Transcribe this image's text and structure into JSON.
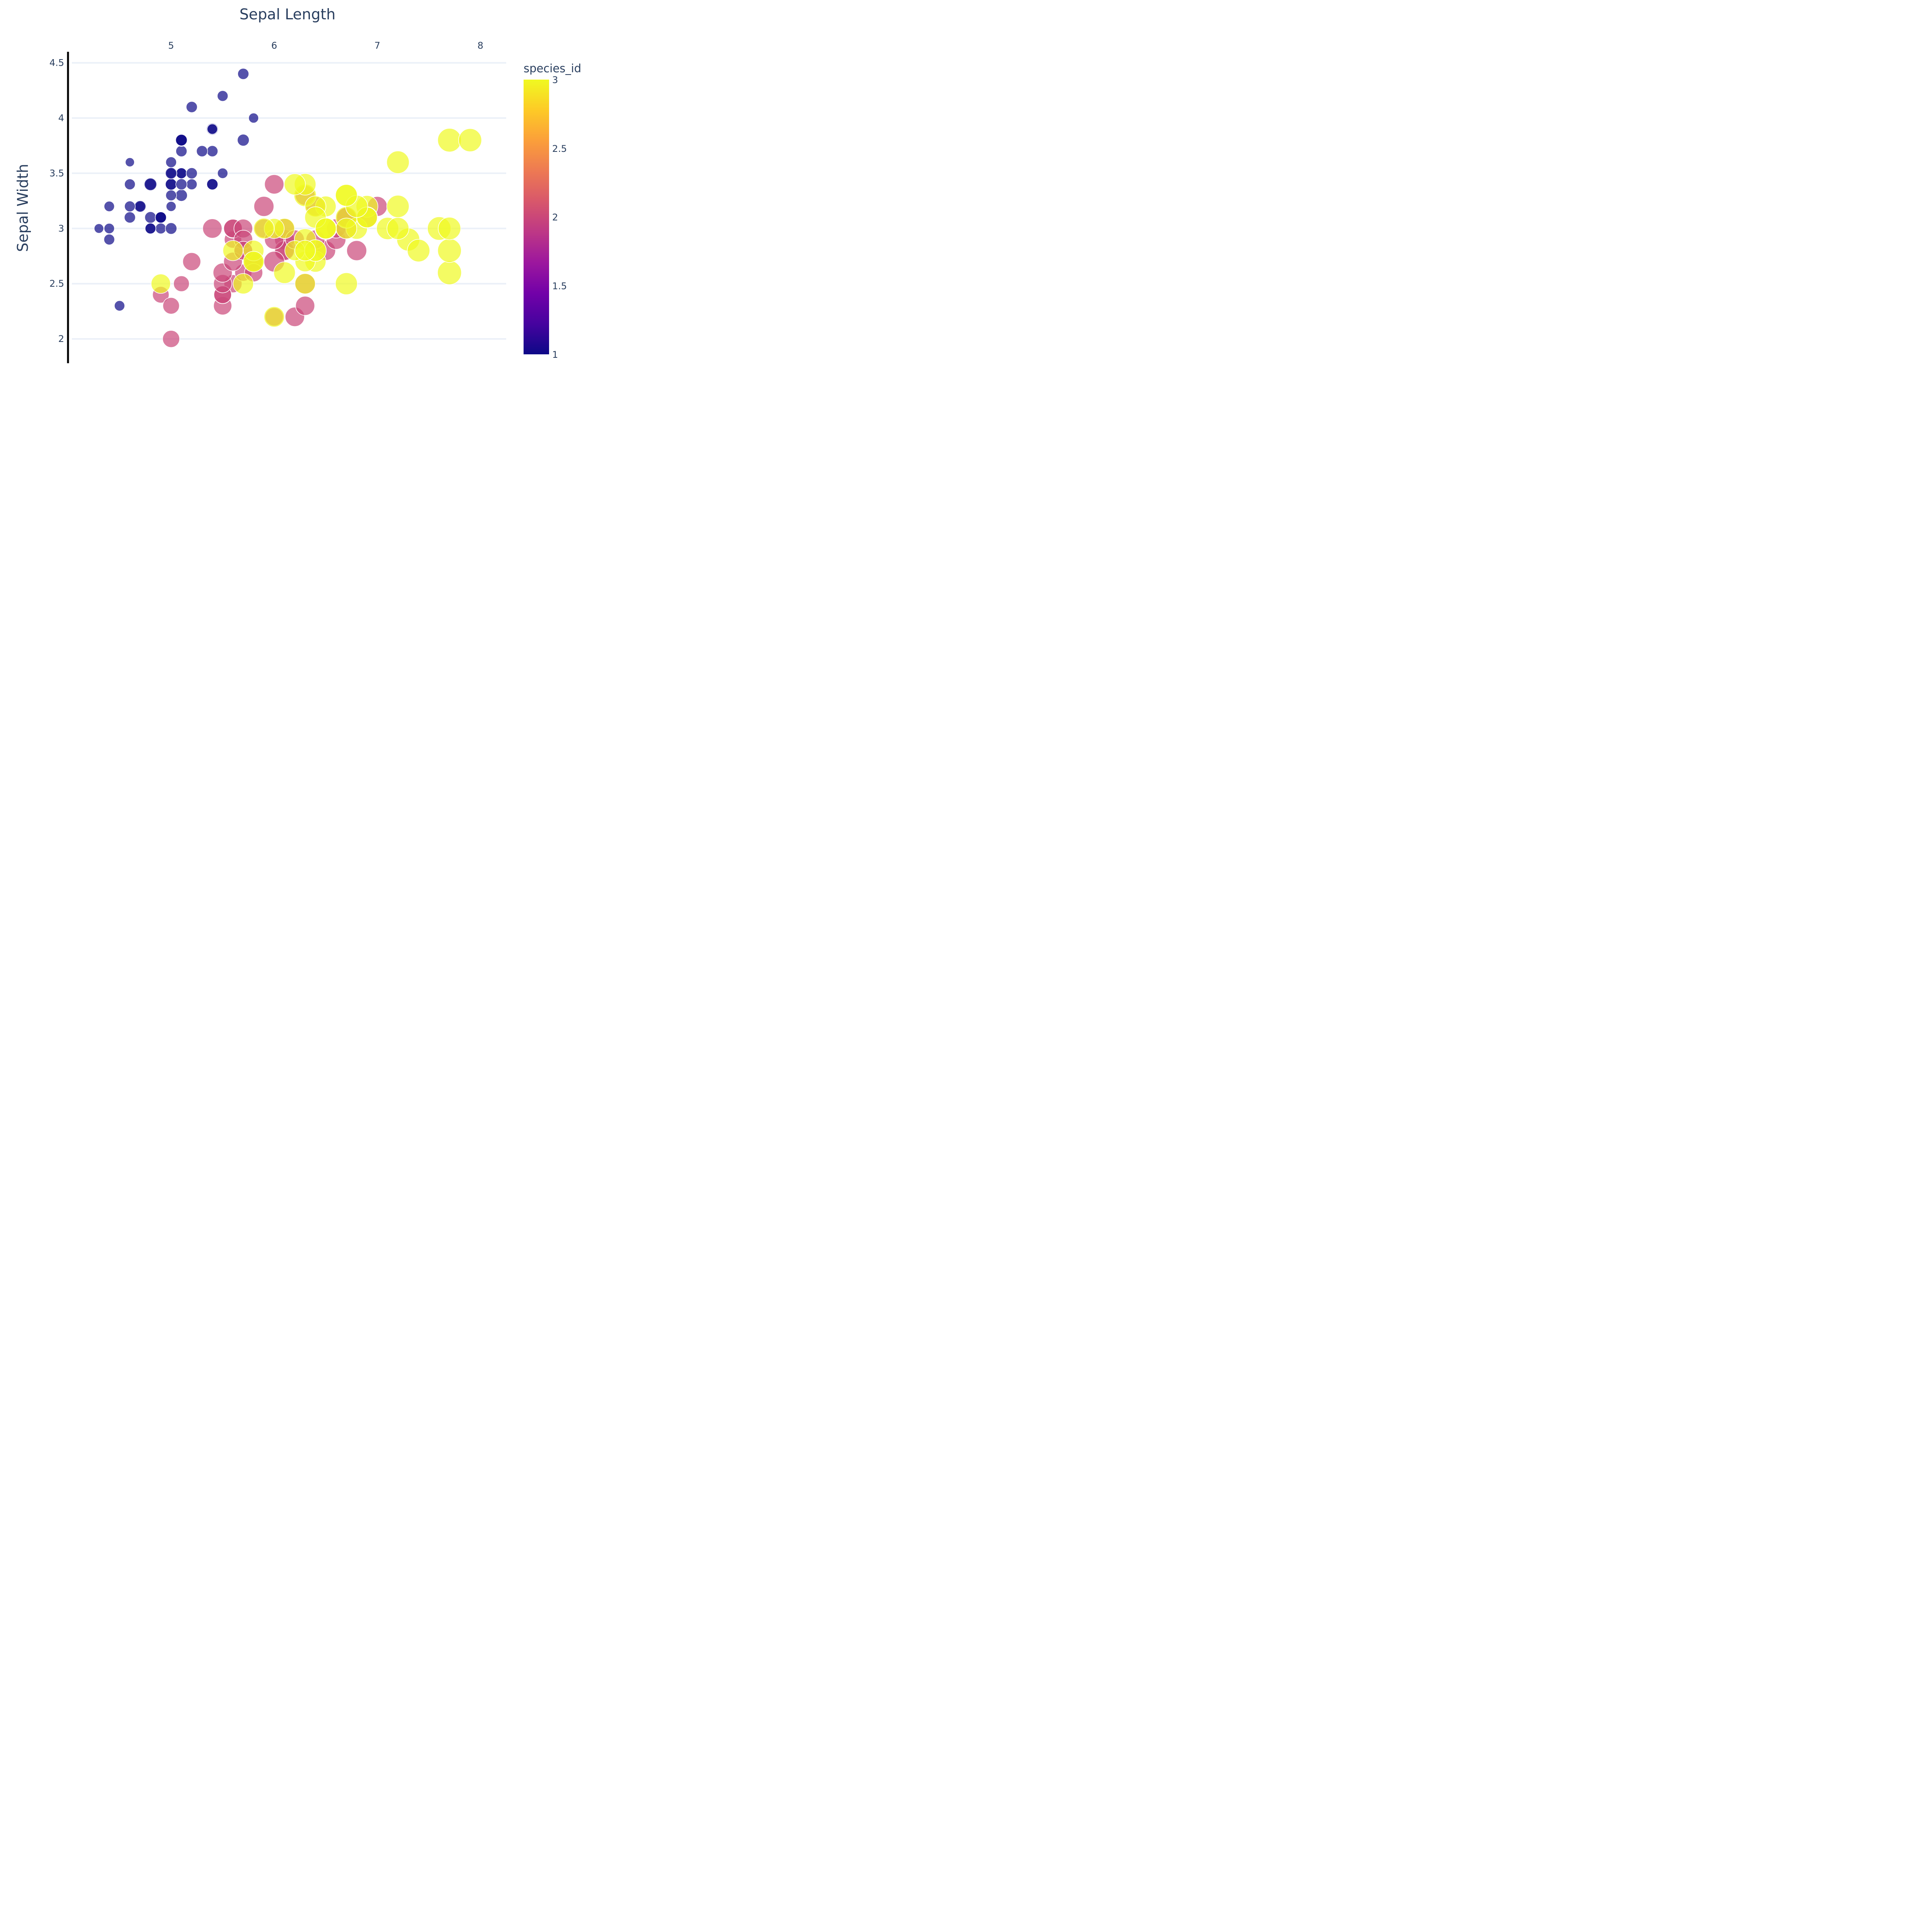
{
  "chart_data": {
    "type": "scatter",
    "xlabel": "Sepal Length",
    "ylabel": "Sepal Width",
    "x_ticks": [
      "5",
      "6",
      "7",
      "8"
    ],
    "y_ticks": [
      "2",
      "2.5",
      "3",
      "3.5",
      "4",
      "4.5"
    ],
    "xlim": [
      4.0,
      8.25
    ],
    "ylim": [
      1.78,
      4.6
    ],
    "x_axis_position": "top",
    "y_axis_line": true,
    "grid": "horizontal",
    "size_by": "petal_length",
    "color_by": "species_id",
    "colorbar": {
      "title": "species_id",
      "min": 1,
      "max": 3,
      "ticks": [
        "1",
        "1.5",
        "2",
        "2.5",
        "3"
      ],
      "colorscale": [
        "#0d0887",
        "#46039f",
        "#7201a8",
        "#9c179e",
        "#bd3786",
        "#d8576b",
        "#ed7953",
        "#fb9f3a",
        "#fdca26",
        "#f0f921"
      ]
    },
    "points": [
      {
        "x": 5.1,
        "y": 3.5,
        "s": 1.4,
        "c": 1
      },
      {
        "x": 4.9,
        "y": 3.0,
        "s": 1.4,
        "c": 1
      },
      {
        "x": 4.7,
        "y": 3.2,
        "s": 1.3,
        "c": 1
      },
      {
        "x": 4.6,
        "y": 3.1,
        "s": 1.5,
        "c": 1
      },
      {
        "x": 5.0,
        "y": 3.6,
        "s": 1.4,
        "c": 1
      },
      {
        "x": 5.4,
        "y": 3.9,
        "s": 1.7,
        "c": 1
      },
      {
        "x": 4.6,
        "y": 3.4,
        "s": 1.4,
        "c": 1
      },
      {
        "x": 5.0,
        "y": 3.4,
        "s": 1.5,
        "c": 1
      },
      {
        "x": 4.4,
        "y": 2.9,
        "s": 1.4,
        "c": 1
      },
      {
        "x": 4.9,
        "y": 3.1,
        "s": 1.5,
        "c": 1
      },
      {
        "x": 5.4,
        "y": 3.7,
        "s": 1.5,
        "c": 1
      },
      {
        "x": 4.8,
        "y": 3.4,
        "s": 1.6,
        "c": 1
      },
      {
        "x": 4.8,
        "y": 3.0,
        "s": 1.4,
        "c": 1
      },
      {
        "x": 4.3,
        "y": 3.0,
        "s": 1.1,
        "c": 1
      },
      {
        "x": 5.8,
        "y": 4.0,
        "s": 1.2,
        "c": 1
      },
      {
        "x": 5.7,
        "y": 4.4,
        "s": 1.5,
        "c": 1
      },
      {
        "x": 5.4,
        "y": 3.9,
        "s": 1.3,
        "c": 1
      },
      {
        "x": 5.1,
        "y": 3.5,
        "s": 1.4,
        "c": 1
      },
      {
        "x": 5.7,
        "y": 3.8,
        "s": 1.7,
        "c": 1
      },
      {
        "x": 5.1,
        "y": 3.8,
        "s": 1.5,
        "c": 1
      },
      {
        "x": 5.4,
        "y": 3.4,
        "s": 1.7,
        "c": 1
      },
      {
        "x": 5.1,
        "y": 3.7,
        "s": 1.5,
        "c": 1
      },
      {
        "x": 4.6,
        "y": 3.6,
        "s": 1.0,
        "c": 1
      },
      {
        "x": 5.1,
        "y": 3.3,
        "s": 1.7,
        "c": 1
      },
      {
        "x": 4.8,
        "y": 3.4,
        "s": 1.9,
        "c": 1
      },
      {
        "x": 5.0,
        "y": 3.0,
        "s": 1.6,
        "c": 1
      },
      {
        "x": 5.0,
        "y": 3.4,
        "s": 1.6,
        "c": 1
      },
      {
        "x": 5.2,
        "y": 3.5,
        "s": 1.5,
        "c": 1
      },
      {
        "x": 5.2,
        "y": 3.4,
        "s": 1.4,
        "c": 1
      },
      {
        "x": 4.7,
        "y": 3.2,
        "s": 1.6,
        "c": 1
      },
      {
        "x": 4.8,
        "y": 3.1,
        "s": 1.6,
        "c": 1
      },
      {
        "x": 5.4,
        "y": 3.4,
        "s": 1.5,
        "c": 1
      },
      {
        "x": 5.2,
        "y": 4.1,
        "s": 1.5,
        "c": 1
      },
      {
        "x": 5.5,
        "y": 4.2,
        "s": 1.4,
        "c": 1
      },
      {
        "x": 4.9,
        "y": 3.1,
        "s": 1.5,
        "c": 1
      },
      {
        "x": 5.0,
        "y": 3.2,
        "s": 1.2,
        "c": 1
      },
      {
        "x": 5.5,
        "y": 3.5,
        "s": 1.3,
        "c": 1
      },
      {
        "x": 4.9,
        "y": 3.1,
        "s": 1.5,
        "c": 1
      },
      {
        "x": 4.4,
        "y": 3.0,
        "s": 1.3,
        "c": 1
      },
      {
        "x": 5.1,
        "y": 3.4,
        "s": 1.5,
        "c": 1
      },
      {
        "x": 5.0,
        "y": 3.5,
        "s": 1.3,
        "c": 1
      },
      {
        "x": 4.5,
        "y": 2.3,
        "s": 1.3,
        "c": 1
      },
      {
        "x": 4.4,
        "y": 3.2,
        "s": 1.3,
        "c": 1
      },
      {
        "x": 5.0,
        "y": 3.5,
        "s": 1.6,
        "c": 1
      },
      {
        "x": 5.1,
        "y": 3.8,
        "s": 1.9,
        "c": 1
      },
      {
        "x": 4.8,
        "y": 3.0,
        "s": 1.4,
        "c": 1
      },
      {
        "x": 5.1,
        "y": 3.8,
        "s": 1.6,
        "c": 1
      },
      {
        "x": 4.6,
        "y": 3.2,
        "s": 1.4,
        "c": 1
      },
      {
        "x": 5.3,
        "y": 3.7,
        "s": 1.5,
        "c": 1
      },
      {
        "x": 5.0,
        "y": 3.3,
        "s": 1.4,
        "c": 1
      },
      {
        "x": 7.0,
        "y": 3.2,
        "s": 4.7,
        "c": 2
      },
      {
        "x": 6.4,
        "y": 3.2,
        "s": 4.5,
        "c": 2
      },
      {
        "x": 6.9,
        "y": 3.1,
        "s": 4.9,
        "c": 2
      },
      {
        "x": 5.5,
        "y": 2.3,
        "s": 4.0,
        "c": 2
      },
      {
        "x": 6.5,
        "y": 2.8,
        "s": 4.6,
        "c": 2
      },
      {
        "x": 5.7,
        "y": 2.8,
        "s": 4.5,
        "c": 2
      },
      {
        "x": 6.3,
        "y": 3.3,
        "s": 4.7,
        "c": 2
      },
      {
        "x": 4.9,
        "y": 2.4,
        "s": 3.3,
        "c": 2
      },
      {
        "x": 6.6,
        "y": 2.9,
        "s": 4.6,
        "c": 2
      },
      {
        "x": 5.2,
        "y": 2.7,
        "s": 3.9,
        "c": 2
      },
      {
        "x": 5.0,
        "y": 2.0,
        "s": 3.5,
        "c": 2
      },
      {
        "x": 5.9,
        "y": 3.0,
        "s": 4.2,
        "c": 2
      },
      {
        "x": 6.0,
        "y": 2.2,
        "s": 4.0,
        "c": 2
      },
      {
        "x": 6.1,
        "y": 2.9,
        "s": 4.7,
        "c": 2
      },
      {
        "x": 5.6,
        "y": 2.9,
        "s": 3.6,
        "c": 2
      },
      {
        "x": 6.7,
        "y": 3.1,
        "s": 4.4,
        "c": 2
      },
      {
        "x": 5.6,
        "y": 3.0,
        "s": 4.5,
        "c": 2
      },
      {
        "x": 5.8,
        "y": 2.7,
        "s": 4.1,
        "c": 2
      },
      {
        "x": 6.2,
        "y": 2.2,
        "s": 4.5,
        "c": 2
      },
      {
        "x": 5.6,
        "y": 2.5,
        "s": 3.9,
        "c": 2
      },
      {
        "x": 5.9,
        "y": 3.2,
        "s": 4.8,
        "c": 2
      },
      {
        "x": 6.1,
        "y": 2.8,
        "s": 4.0,
        "c": 2
      },
      {
        "x": 6.3,
        "y": 2.5,
        "s": 4.9,
        "c": 2
      },
      {
        "x": 6.1,
        "y": 2.8,
        "s": 4.7,
        "c": 2
      },
      {
        "x": 6.4,
        "y": 2.9,
        "s": 4.3,
        "c": 2
      },
      {
        "x": 6.6,
        "y": 3.0,
        "s": 4.4,
        "c": 2
      },
      {
        "x": 6.8,
        "y": 2.8,
        "s": 4.8,
        "c": 2
      },
      {
        "x": 6.7,
        "y": 3.0,
        "s": 5.0,
        "c": 2
      },
      {
        "x": 6.0,
        "y": 2.9,
        "s": 4.5,
        "c": 2
      },
      {
        "x": 5.7,
        "y": 2.6,
        "s": 3.5,
        "c": 2
      },
      {
        "x": 5.5,
        "y": 2.4,
        "s": 3.8,
        "c": 2
      },
      {
        "x": 5.5,
        "y": 2.4,
        "s": 3.7,
        "c": 2
      },
      {
        "x": 5.8,
        "y": 2.7,
        "s": 3.9,
        "c": 2
      },
      {
        "x": 6.0,
        "y": 2.7,
        "s": 5.1,
        "c": 2
      },
      {
        "x": 5.4,
        "y": 3.0,
        "s": 4.5,
        "c": 2
      },
      {
        "x": 6.0,
        "y": 3.4,
        "s": 4.5,
        "c": 2
      },
      {
        "x": 6.7,
        "y": 3.1,
        "s": 4.7,
        "c": 2
      },
      {
        "x": 6.3,
        "y": 2.3,
        "s": 4.4,
        "c": 2
      },
      {
        "x": 5.6,
        "y": 3.0,
        "s": 4.1,
        "c": 2
      },
      {
        "x": 5.5,
        "y": 2.5,
        "s": 4.0,
        "c": 2
      },
      {
        "x": 5.5,
        "y": 2.6,
        "s": 4.4,
        "c": 2
      },
      {
        "x": 6.1,
        "y": 3.0,
        "s": 4.6,
        "c": 2
      },
      {
        "x": 5.8,
        "y": 2.6,
        "s": 4.0,
        "c": 2
      },
      {
        "x": 5.0,
        "y": 2.3,
        "s": 3.3,
        "c": 2
      },
      {
        "x": 5.6,
        "y": 2.7,
        "s": 4.2,
        "c": 2
      },
      {
        "x": 5.7,
        "y": 3.0,
        "s": 4.2,
        "c": 2
      },
      {
        "x": 5.7,
        "y": 2.9,
        "s": 4.2,
        "c": 2
      },
      {
        "x": 6.2,
        "y": 2.9,
        "s": 4.3,
        "c": 2
      },
      {
        "x": 5.1,
        "y": 2.5,
        "s": 3.0,
        "c": 2
      },
      {
        "x": 5.7,
        "y": 2.8,
        "s": 4.1,
        "c": 2
      },
      {
        "x": 6.3,
        "y": 3.3,
        "s": 6.0,
        "c": 3
      },
      {
        "x": 5.8,
        "y": 2.7,
        "s": 5.1,
        "c": 3
      },
      {
        "x": 7.1,
        "y": 3.0,
        "s": 5.9,
        "c": 3
      },
      {
        "x": 6.3,
        "y": 2.9,
        "s": 5.6,
        "c": 3
      },
      {
        "x": 6.5,
        "y": 3.0,
        "s": 5.8,
        "c": 3
      },
      {
        "x": 7.6,
        "y": 3.0,
        "s": 6.6,
        "c": 3
      },
      {
        "x": 4.9,
        "y": 2.5,
        "s": 4.5,
        "c": 3
      },
      {
        "x": 7.3,
        "y": 2.9,
        "s": 6.3,
        "c": 3
      },
      {
        "x": 6.7,
        "y": 2.5,
        "s": 5.8,
        "c": 3
      },
      {
        "x": 7.2,
        "y": 3.6,
        "s": 6.1,
        "c": 3
      },
      {
        "x": 6.5,
        "y": 3.2,
        "s": 5.1,
        "c": 3
      },
      {
        "x": 6.4,
        "y": 2.7,
        "s": 5.3,
        "c": 3
      },
      {
        "x": 6.8,
        "y": 3.0,
        "s": 5.5,
        "c": 3
      },
      {
        "x": 5.7,
        "y": 2.5,
        "s": 5.0,
        "c": 3
      },
      {
        "x": 5.8,
        "y": 2.8,
        "s": 5.1,
        "c": 3
      },
      {
        "x": 6.4,
        "y": 3.2,
        "s": 5.3,
        "c": 3
      },
      {
        "x": 6.5,
        "y": 3.0,
        "s": 5.5,
        "c": 3
      },
      {
        "x": 7.7,
        "y": 3.8,
        "s": 6.7,
        "c": 3
      },
      {
        "x": 7.7,
        "y": 2.6,
        "s": 6.9,
        "c": 3
      },
      {
        "x": 6.0,
        "y": 2.2,
        "s": 5.0,
        "c": 3
      },
      {
        "x": 6.9,
        "y": 3.2,
        "s": 5.7,
        "c": 3
      },
      {
        "x": 5.6,
        "y": 2.8,
        "s": 4.9,
        "c": 3
      },
      {
        "x": 7.7,
        "y": 2.8,
        "s": 6.7,
        "c": 3
      },
      {
        "x": 6.3,
        "y": 2.7,
        "s": 4.9,
        "c": 3
      },
      {
        "x": 6.7,
        "y": 3.3,
        "s": 5.7,
        "c": 3
      },
      {
        "x": 7.2,
        "y": 3.2,
        "s": 6.0,
        "c": 3
      },
      {
        "x": 6.2,
        "y": 2.8,
        "s": 4.8,
        "c": 3
      },
      {
        "x": 6.1,
        "y": 3.0,
        "s": 4.9,
        "c": 3
      },
      {
        "x": 6.4,
        "y": 2.8,
        "s": 5.6,
        "c": 3
      },
      {
        "x": 7.2,
        "y": 3.0,
        "s": 5.8,
        "c": 3
      },
      {
        "x": 7.4,
        "y": 2.8,
        "s": 6.1,
        "c": 3
      },
      {
        "x": 7.9,
        "y": 3.8,
        "s": 6.4,
        "c": 3
      },
      {
        "x": 6.4,
        "y": 2.8,
        "s": 5.6,
        "c": 3
      },
      {
        "x": 6.3,
        "y": 2.8,
        "s": 5.1,
        "c": 3
      },
      {
        "x": 6.1,
        "y": 2.6,
        "s": 5.6,
        "c": 3
      },
      {
        "x": 7.7,
        "y": 3.0,
        "s": 6.1,
        "c": 3
      },
      {
        "x": 6.3,
        "y": 3.4,
        "s": 5.6,
        "c": 3
      },
      {
        "x": 6.4,
        "y": 3.1,
        "s": 5.5,
        "c": 3
      },
      {
        "x": 6.0,
        "y": 3.0,
        "s": 4.8,
        "c": 3
      },
      {
        "x": 6.9,
        "y": 3.1,
        "s": 5.4,
        "c": 3
      },
      {
        "x": 6.7,
        "y": 3.1,
        "s": 5.6,
        "c": 3
      },
      {
        "x": 6.9,
        "y": 3.1,
        "s": 5.1,
        "c": 3
      },
      {
        "x": 5.8,
        "y": 2.7,
        "s": 5.1,
        "c": 3
      },
      {
        "x": 6.8,
        "y": 3.2,
        "s": 5.9,
        "c": 3
      },
      {
        "x": 6.7,
        "y": 3.3,
        "s": 5.7,
        "c": 3
      },
      {
        "x": 6.7,
        "y": 3.0,
        "s": 5.2,
        "c": 3
      },
      {
        "x": 6.3,
        "y": 2.5,
        "s": 5.0,
        "c": 3
      },
      {
        "x": 6.5,
        "y": 3.0,
        "s": 5.2,
        "c": 3
      },
      {
        "x": 6.2,
        "y": 3.4,
        "s": 5.4,
        "c": 3
      },
      {
        "x": 5.9,
        "y": 3.0,
        "s": 5.1,
        "c": 3
      }
    ]
  }
}
